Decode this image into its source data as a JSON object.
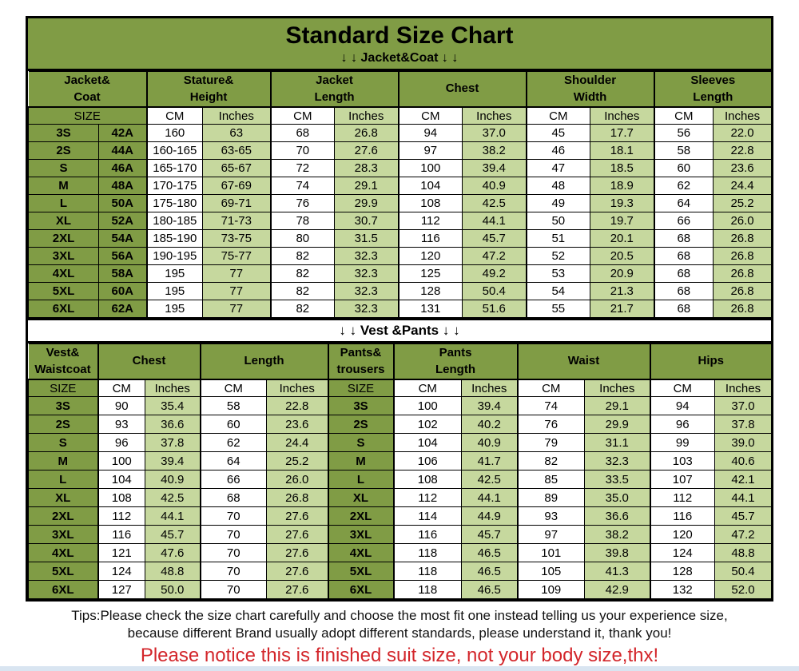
{
  "page": {
    "title": "Standard Size Chart",
    "tips_line1": "Tips:Please check the size chart carefully and choose the most fit one instead telling us your experience size,",
    "tips_line2": "because different Brand usually adopt different standards, please understand it, thank you!",
    "notice": "Please notice this is finished suit size, not your body size,thx!"
  },
  "colors": {
    "olive_green": "#809c45",
    "light_green": "#c6d89e",
    "white": "#ffffff",
    "notice_red": "#d3262b",
    "border_black": "#000000"
  },
  "units": {
    "size": "SIZE",
    "cm": "CM",
    "inches": "Inches"
  },
  "jacket": {
    "section_label": "↓ ↓  Jacket&Coat ↓ ↓",
    "header_groups": [
      {
        "label": "Jacket&\nCoat"
      },
      {
        "label": "Stature&\nHeight"
      },
      {
        "label": "Jacket\nLength"
      },
      {
        "label": "Chest"
      },
      {
        "label": "Shoulder\nWidth"
      },
      {
        "label": "Sleeves\nLength"
      }
    ],
    "col_types": [
      "size",
      "size",
      "cm",
      "in",
      "cm",
      "in",
      "cm",
      "in",
      "cm",
      "in",
      "cm",
      "in"
    ],
    "rows": [
      [
        "3S",
        "42A",
        "160",
        "63",
        "68",
        "26.8",
        "94",
        "37.0",
        "45",
        "17.7",
        "56",
        "22.0"
      ],
      [
        "2S",
        "44A",
        "160-165",
        "63-65",
        "70",
        "27.6",
        "97",
        "38.2",
        "46",
        "18.1",
        "58",
        "22.8"
      ],
      [
        "S",
        "46A",
        "165-170",
        "65-67",
        "72",
        "28.3",
        "100",
        "39.4",
        "47",
        "18.5",
        "60",
        "23.6"
      ],
      [
        "M",
        "48A",
        "170-175",
        "67-69",
        "74",
        "29.1",
        "104",
        "40.9",
        "48",
        "18.9",
        "62",
        "24.4"
      ],
      [
        "L",
        "50A",
        "175-180",
        "69-71",
        "76",
        "29.9",
        "108",
        "42.5",
        "49",
        "19.3",
        "64",
        "25.2"
      ],
      [
        "XL",
        "52A",
        "180-185",
        "71-73",
        "78",
        "30.7",
        "112",
        "44.1",
        "50",
        "19.7",
        "66",
        "26.0"
      ],
      [
        "2XL",
        "54A",
        "185-190",
        "73-75",
        "80",
        "31.5",
        "116",
        "45.7",
        "51",
        "20.1",
        "68",
        "26.8"
      ],
      [
        "3XL",
        "56A",
        "190-195",
        "75-77",
        "82",
        "32.3",
        "120",
        "47.2",
        "52",
        "20.5",
        "68",
        "26.8"
      ],
      [
        "4XL",
        "58A",
        "195",
        "77",
        "82",
        "32.3",
        "125",
        "49.2",
        "53",
        "20.9",
        "68",
        "26.8"
      ],
      [
        "5XL",
        "60A",
        "195",
        "77",
        "82",
        "32.3",
        "128",
        "50.4",
        "54",
        "21.3",
        "68",
        "26.8"
      ],
      [
        "6XL",
        "62A",
        "195",
        "77",
        "82",
        "32.3",
        "131",
        "51.6",
        "55",
        "21.7",
        "68",
        "26.8"
      ]
    ]
  },
  "vest": {
    "section_label": "↓ ↓  Vest &Pants ↓ ↓",
    "header_groups": [
      {
        "label": "Vest&\nWaistcoat"
      },
      {
        "label": "Chest"
      },
      {
        "label": "Length"
      },
      {
        "label": "Pants&\ntrousers"
      },
      {
        "label": "Pants\nLength"
      },
      {
        "label": "Waist"
      },
      {
        "label": "Hips"
      }
    ],
    "col_types": [
      "size",
      "cm",
      "in",
      "cm",
      "in",
      "size",
      "cm",
      "in",
      "cm",
      "in",
      "cm",
      "in"
    ],
    "rows": [
      [
        "3S",
        "90",
        "35.4",
        "58",
        "22.8",
        "3S",
        "100",
        "39.4",
        "74",
        "29.1",
        "94",
        "37.0"
      ],
      [
        "2S",
        "93",
        "36.6",
        "60",
        "23.6",
        "2S",
        "102",
        "40.2",
        "76",
        "29.9",
        "96",
        "37.8"
      ],
      [
        "S",
        "96",
        "37.8",
        "62",
        "24.4",
        "S",
        "104",
        "40.9",
        "79",
        "31.1",
        "99",
        "39.0"
      ],
      [
        "M",
        "100",
        "39.4",
        "64",
        "25.2",
        "M",
        "106",
        "41.7",
        "82",
        "32.3",
        "103",
        "40.6"
      ],
      [
        "L",
        "104",
        "40.9",
        "66",
        "26.0",
        "L",
        "108",
        "42.5",
        "85",
        "33.5",
        "107",
        "42.1"
      ],
      [
        "XL",
        "108",
        "42.5",
        "68",
        "26.8",
        "XL",
        "112",
        "44.1",
        "89",
        "35.0",
        "112",
        "44.1"
      ],
      [
        "2XL",
        "112",
        "44.1",
        "70",
        "27.6",
        "2XL",
        "114",
        "44.9",
        "93",
        "36.6",
        "116",
        "45.7"
      ],
      [
        "3XL",
        "116",
        "45.7",
        "70",
        "27.6",
        "3XL",
        "116",
        "45.7",
        "97",
        "38.2",
        "120",
        "47.2"
      ],
      [
        "4XL",
        "121",
        "47.6",
        "70",
        "27.6",
        "4XL",
        "118",
        "46.5",
        "101",
        "39.8",
        "124",
        "48.8"
      ],
      [
        "5XL",
        "124",
        "48.8",
        "70",
        "27.6",
        "5XL",
        "118",
        "46.5",
        "105",
        "41.3",
        "128",
        "50.4"
      ],
      [
        "6XL",
        "127",
        "50.0",
        "70",
        "27.6",
        "6XL",
        "118",
        "46.5",
        "109",
        "42.9",
        "132",
        "52.0"
      ]
    ]
  }
}
